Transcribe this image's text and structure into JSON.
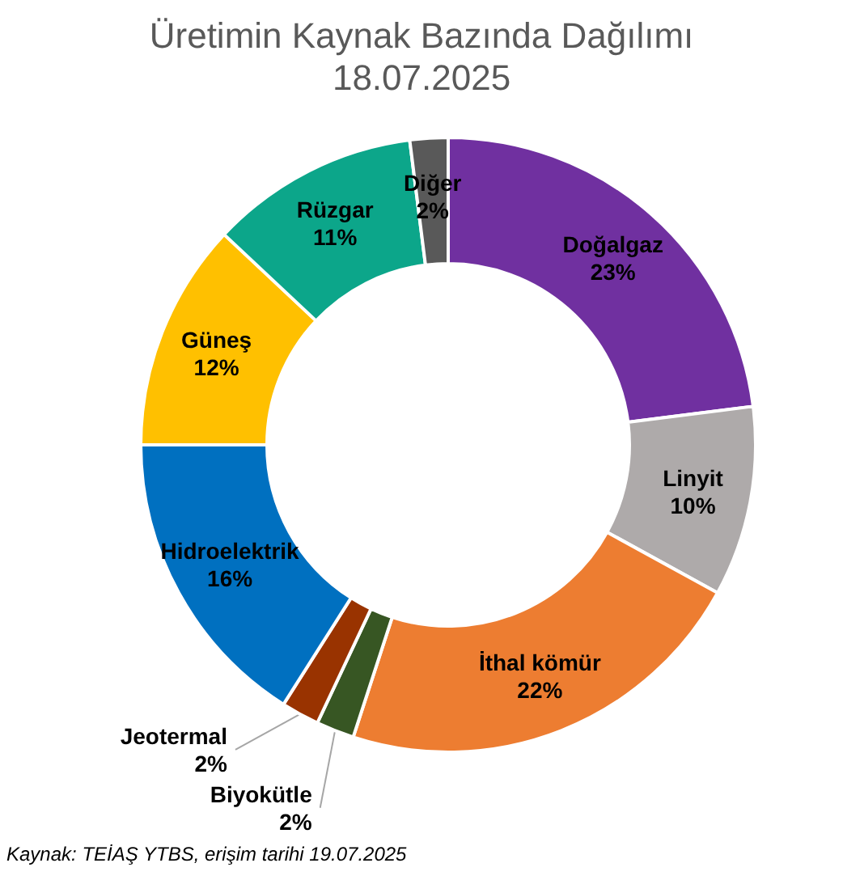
{
  "chart_data": {
    "type": "donut",
    "title": "Üretimin Kaynak Bazında Dağılımı",
    "subtitle": "18.07.2025",
    "categories": [
      "Doğalgaz",
      "Linyit",
      "İthal kömür",
      "Biyokütle",
      "Jeotermal",
      "Hidroelektrik",
      "Güneş",
      "Rüzgar",
      "Diğer"
    ],
    "values": [
      23,
      10,
      22,
      2,
      2,
      16,
      12,
      11,
      2
    ],
    "value_labels": [
      "23%",
      "10%",
      "22%",
      "2%",
      "2%",
      "16%",
      "12%",
      "11%",
      "2%"
    ],
    "colors": [
      "#7030a0",
      "#aeaaaa",
      "#ed7d31",
      "#375623",
      "#993300",
      "#0070c0",
      "#ffc000",
      "#0ca68a",
      "#595959"
    ],
    "data_labels": true,
    "legend": false,
    "annotations": [
      "Kaynak: TEİAŞ YTBS, erişim tarihi 19.07.2025"
    ]
  }
}
